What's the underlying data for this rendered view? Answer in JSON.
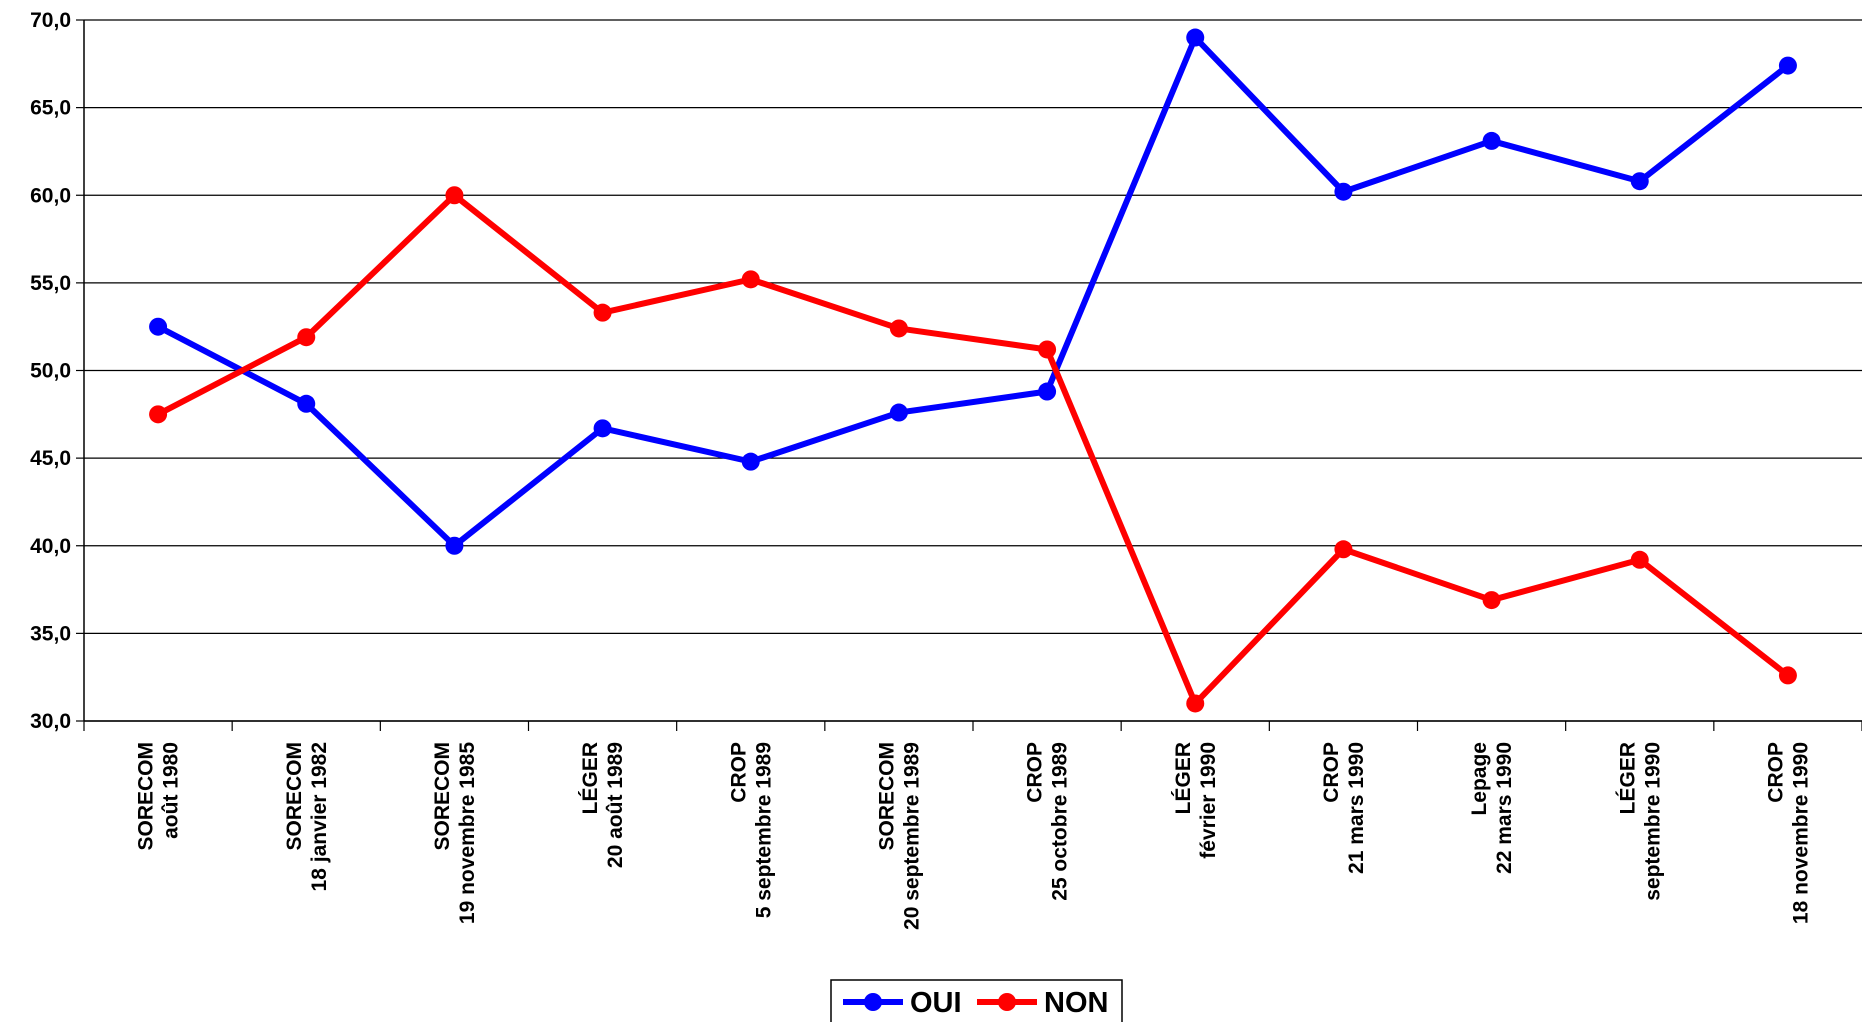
{
  "chart_data": {
    "type": "line",
    "title": "",
    "xlabel": "",
    "ylabel": "",
    "ylim": [
      30,
      70
    ],
    "ytick_step": 5,
    "ytick_format": "comma-1-decimal",
    "grid": true,
    "legend_position": "bottom-center",
    "categories": [
      [
        "SORECOM",
        "août 1980"
      ],
      [
        "SORECOM",
        "18 janvier 1982"
      ],
      [
        "SORECOM",
        "19 novembre 1985"
      ],
      [
        "LÉGER",
        "20 août 1989"
      ],
      [
        "CROP",
        "5 septembre 1989"
      ],
      [
        "SORECOM",
        "20 septembre 1989"
      ],
      [
        "CROP",
        "25 octobre 1989"
      ],
      [
        "LÉGER",
        "février 1990"
      ],
      [
        "CROP",
        "21 mars 1990"
      ],
      [
        "Lepage",
        "22 mars 1990"
      ],
      [
        "LÉGER",
        "septembre 1990"
      ],
      [
        "CROP",
        "18 novembre 1990"
      ]
    ],
    "series": [
      {
        "name": "OUI",
        "color": "#0000ff",
        "values": [
          52.5,
          48.1,
          40.0,
          46.7,
          44.8,
          47.6,
          48.8,
          69.0,
          60.2,
          63.1,
          60.8,
          67.4
        ]
      },
      {
        "name": "NON",
        "color": "#ff0000",
        "values": [
          47.5,
          51.9,
          60.0,
          53.3,
          55.2,
          52.4,
          51.2,
          31.0,
          39.8,
          36.9,
          39.2,
          32.6
        ]
      }
    ]
  }
}
